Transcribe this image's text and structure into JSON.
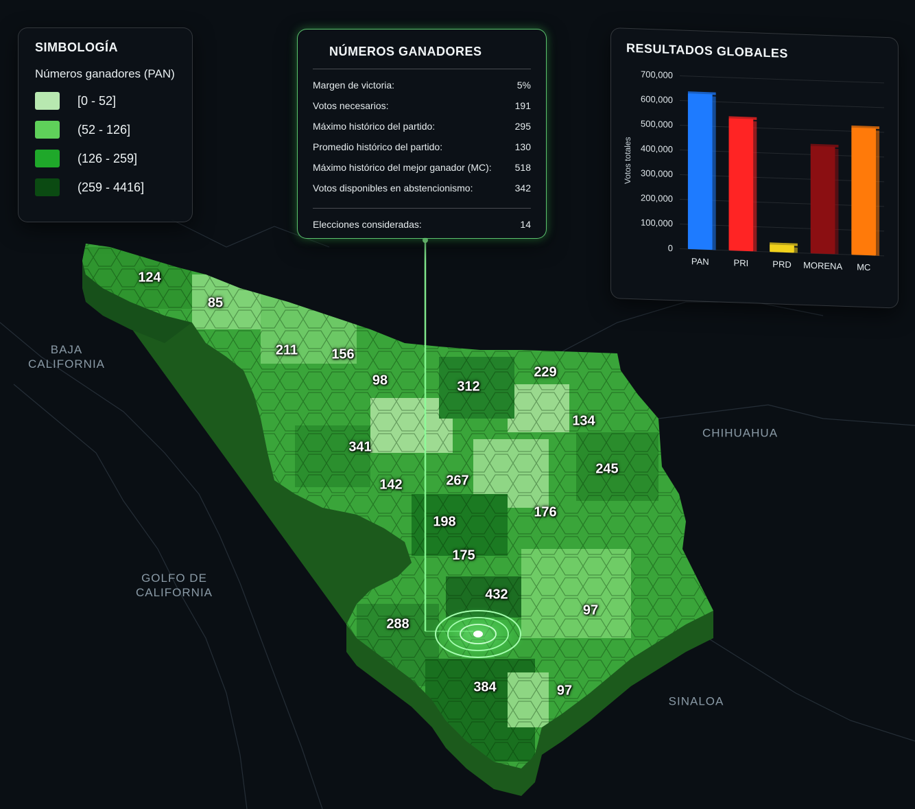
{
  "legend": {
    "title": "SIMBOLOGÍA",
    "subtitle": "Números ganadores (PAN)",
    "items": [
      {
        "label": "[0 - 52]",
        "color": "#b8e8b0"
      },
      {
        "label": "(52 - 126]",
        "color": "#5fd05a"
      },
      {
        "label": "(126 - 259]",
        "color": "#1fa82a"
      },
      {
        "label": "(259 - 4416]",
        "color": "#0b4a12"
      }
    ]
  },
  "info": {
    "title": "NÚMEROS GANADORES",
    "rows": [
      {
        "label": "Margen de victoria:",
        "value": "5%"
      },
      {
        "label": "Votos necesarios:",
        "value": "191"
      },
      {
        "label": "Máximo histórico del partido:",
        "value": "295"
      },
      {
        "label": "Promedio histórico del partido:",
        "value": "130"
      },
      {
        "label": "Máximo histórico del mejor ganador (MC):",
        "value": "518"
      },
      {
        "label": "Votos disponibles en abstencionismo:",
        "value": "342"
      }
    ],
    "footer": {
      "label": "Elecciones consideradas:",
      "value": "14"
    }
  },
  "chart_data": {
    "type": "bar",
    "title": "RESULTADOS GLOBALES",
    "ylabel": "Votos totales",
    "xlabel": "",
    "ylim": [
      0,
      700000
    ],
    "yticks": [
      "0",
      "100,000",
      "200,000",
      "300,000",
      "400,000",
      "500,000",
      "600,000",
      "700,000"
    ],
    "categories": [
      "PAN",
      "PRI",
      "PRD",
      "MORENA",
      "MC"
    ],
    "values": [
      630000,
      535000,
      30000,
      435000,
      515000
    ],
    "colors": [
      "#1e7bff",
      "#ff2424",
      "#f2d21c",
      "#8b0f12",
      "#ff7a0a"
    ]
  },
  "map": {
    "numbers": [
      "124",
      "85",
      "211",
      "156",
      "98",
      "312",
      "229",
      "134",
      "341",
      "245",
      "142",
      "267",
      "176",
      "198",
      "175",
      "432",
      "97",
      "288",
      "384",
      "97"
    ],
    "regions": [
      "BAJA\nCALIFORNIA",
      "CHIHUAHUA",
      "GOLFO DE\nCALIFORNIA",
      "SINALOA"
    ]
  }
}
